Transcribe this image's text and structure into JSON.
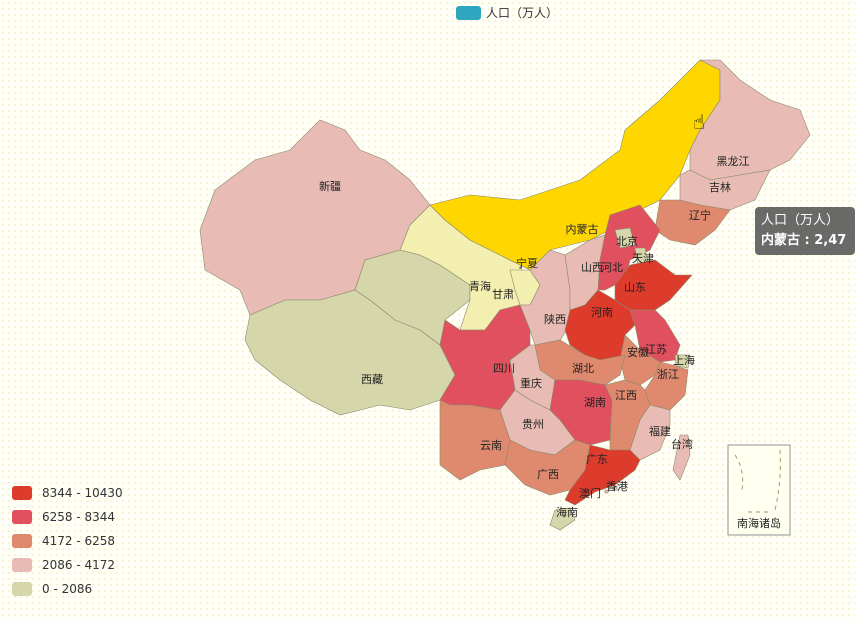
{
  "legend": {
    "series_name": "人口（万人）",
    "color": "#2fa6c0"
  },
  "visual_map": {
    "items": [
      {
        "label": "8344 - 10430",
        "color": "#dd3b2c"
      },
      {
        "label": "6258 - 8344",
        "color": "#e0505e"
      },
      {
        "label": "4172 - 6258",
        "color": "#df8a6e"
      },
      {
        "label": "2086 - 4172",
        "color": "#e8bcb4"
      },
      {
        "label": "0 - 2086",
        "color": "#d5d6aa"
      }
    ]
  },
  "tooltip": {
    "title": "人口（万人）",
    "content": "内蒙古 : 2,47"
  },
  "highlight_color": "#ffd700",
  "regions": [
    {
      "name": "新疆",
      "class": 3
    },
    {
      "name": "西藏",
      "class": 4
    },
    {
      "name": "青海",
      "class": 4
    },
    {
      "name": "甘肃",
      "class": "pale"
    },
    {
      "name": "内蒙古",
      "class": "hover"
    },
    {
      "name": "黑龙江",
      "class": 3
    },
    {
      "name": "吉林",
      "class": 3
    },
    {
      "name": "辽宁",
      "class": 2
    },
    {
      "name": "宁夏",
      "class": "pale"
    },
    {
      "name": "陕西",
      "class": 3
    },
    {
      "name": "山西",
      "class": 3
    },
    {
      "name": "河北",
      "class": 1
    },
    {
      "name": "北京",
      "class": 4
    },
    {
      "name": "天津",
      "class": 4
    },
    {
      "name": "山东",
      "class": 0
    },
    {
      "name": "河南",
      "class": 0
    },
    {
      "name": "江苏",
      "class": 1
    },
    {
      "name": "安徽",
      "class": 2
    },
    {
      "name": "上海",
      "class": 4
    },
    {
      "name": "浙江",
      "class": 2
    },
    {
      "name": "湖北",
      "class": 2
    },
    {
      "name": "重庆",
      "class": 3
    },
    {
      "name": "四川",
      "class": 1
    },
    {
      "name": "贵州",
      "class": 3
    },
    {
      "name": "湖南",
      "class": 1
    },
    {
      "name": "江西",
      "class": 2
    },
    {
      "name": "福建",
      "class": 3
    },
    {
      "name": "台湾",
      "class": 3
    },
    {
      "name": "云南",
      "class": 2
    },
    {
      "name": "广西",
      "class": 2
    },
    {
      "name": "广东",
      "class": 0
    },
    {
      "name": "海南",
      "class": 4
    },
    {
      "name": "香港",
      "class": 3
    },
    {
      "name": "澳门",
      "class": 3
    }
  ],
  "inset_label": "南海诸岛"
}
